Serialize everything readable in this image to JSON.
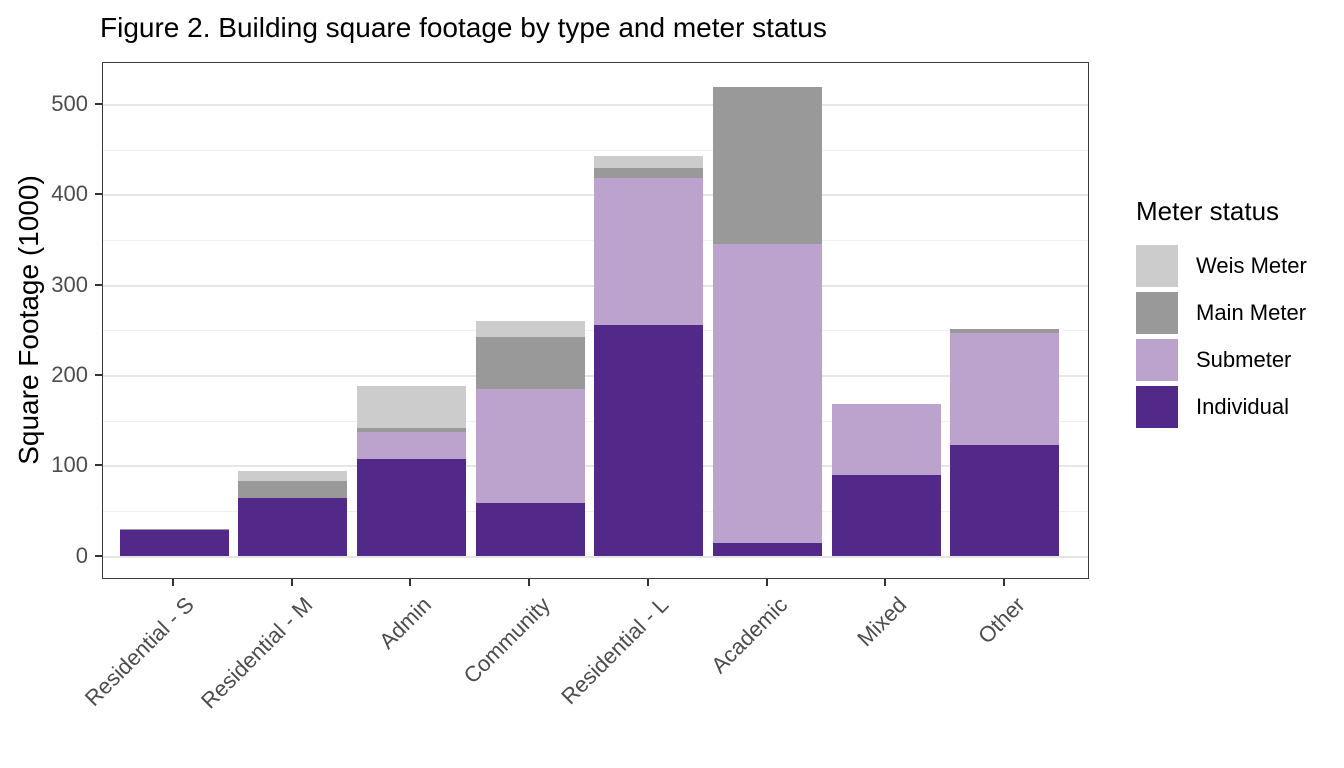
{
  "chart_data": {
    "type": "bar",
    "stacked": true,
    "title": "Figure 2. Building square footage by type and meter status",
    "ylabel": "Square Footage (1000)",
    "xlabel": "",
    "grid": true,
    "ylim": [
      0,
      520
    ],
    "yticks_major": [
      0,
      100,
      200,
      300,
      400,
      500
    ],
    "yticks_minor": [
      50,
      150,
      250,
      350,
      450
    ],
    "categories": [
      "Residential - S",
      "Residential - M",
      "Admin",
      "Community",
      "Residential - L",
      "Academic",
      "Mixed",
      "Other"
    ],
    "series": [
      {
        "name": "Individual",
        "color": "#522888",
        "values": [
          29,
          65,
          108,
          59,
          256,
          15,
          90,
          124
        ]
      },
      {
        "name": "Submeter",
        "color": "#bba3ce",
        "values": [
          0,
          0,
          30,
          126,
          163,
          331,
          79,
          124
        ]
      },
      {
        "name": "Main Meter",
        "color": "#999999",
        "values": [
          1,
          19,
          4,
          58,
          11,
          174,
          0,
          4
        ]
      },
      {
        "name": "Weis Meter",
        "color": "#cccccc",
        "values": [
          0,
          11,
          47,
          18,
          13,
          0,
          0,
          0
        ]
      }
    ],
    "totals": [
      30,
      95,
      189,
      261,
      443,
      520,
      169,
      252
    ],
    "legend": {
      "title": "Meter status",
      "position": "right",
      "order": [
        "Weis Meter",
        "Main Meter",
        "Submeter",
        "Individual"
      ]
    }
  }
}
